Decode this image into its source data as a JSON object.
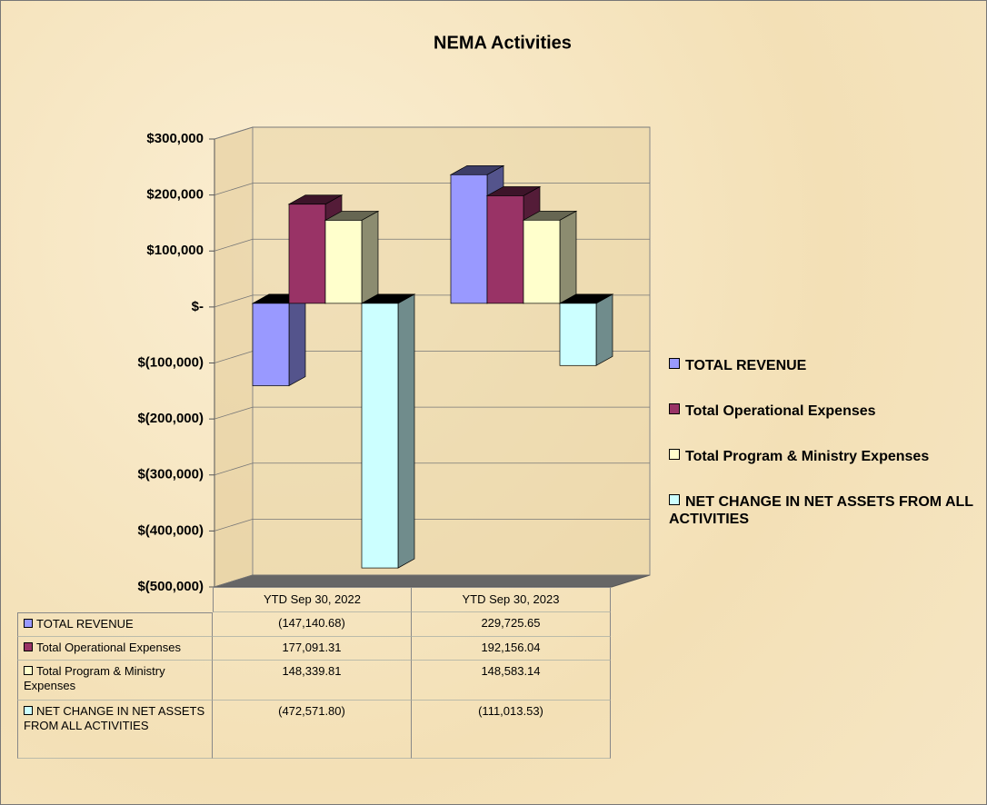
{
  "chart_data": {
    "type": "bar3d",
    "title": "NEMA Activities",
    "categories": [
      "YTD Sep 30, 2022",
      "YTD Sep 30, 2023"
    ],
    "series": [
      {
        "name": "TOTAL REVENUE",
        "color": "#9999ff",
        "values": [
          -147140.68,
          229725.65
        ],
        "value_labels": [
          "(147,140.68)",
          "229,725.65"
        ]
      },
      {
        "name": "Total Operational Expenses",
        "color": "#993366",
        "values": [
          177091.31,
          192156.04
        ],
        "value_labels": [
          "177,091.31",
          "192,156.04"
        ]
      },
      {
        "name": "Total Program & Ministry Expenses",
        "color": "#ffffcc",
        "values": [
          148339.81,
          148583.14
        ],
        "value_labels": [
          "148,339.81",
          "148,583.14"
        ]
      },
      {
        "name": "NET CHANGE IN NET ASSETS FROM ALL ACTIVITIES",
        "color": "#ccffff",
        "values": [
          -472571.8,
          -111013.53
        ],
        "value_labels": [
          "(472,571.80)",
          "(111,013.53)"
        ]
      }
    ],
    "ylim": [
      -500000,
      300000
    ],
    "yticks": [
      {
        "value": -500000,
        "label": "$(500,000)"
      },
      {
        "value": -400000,
        "label": "$(400,000)"
      },
      {
        "value": -300000,
        "label": "$(300,000)"
      },
      {
        "value": -200000,
        "label": "$(200,000)"
      },
      {
        "value": -100000,
        "label": "$(100,000)"
      },
      {
        "value": 0,
        "label": "$-"
      },
      {
        "value": 100000,
        "label": "$100,000"
      },
      {
        "value": 200000,
        "label": "$200,000"
      },
      {
        "value": 300000,
        "label": "$300,000"
      }
    ],
    "grid": true,
    "legend": "right"
  }
}
